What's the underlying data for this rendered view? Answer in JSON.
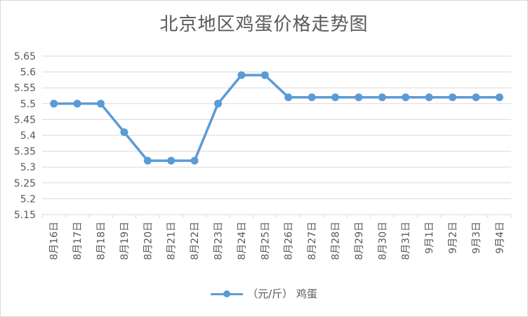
{
  "chart_data": {
    "type": "line",
    "title": "北京地区鸡蛋价格走势图",
    "xlabel": "",
    "ylabel": "",
    "categories": [
      "8月16日",
      "8月17日",
      "8月18日",
      "8月19日",
      "8月20日",
      "8月21日",
      "8月22日",
      "8月23日",
      "8月24日",
      "8月25日",
      "8月26日",
      "8月27日",
      "8月28日",
      "8月29日",
      "8月30日",
      "8月31日",
      "9月1日",
      "9月2日",
      "9月3日",
      "9月4日"
    ],
    "series": [
      {
        "name": "（元/斤）  鸡蛋",
        "values": [
          5.5,
          5.5,
          5.5,
          5.41,
          5.32,
          5.32,
          5.32,
          5.5,
          5.59,
          5.59,
          5.52,
          5.52,
          5.52,
          5.52,
          5.52,
          5.52,
          5.52,
          5.52,
          5.52,
          5.52
        ]
      }
    ],
    "ylim": [
      5.15,
      5.65
    ],
    "yticks": [
      "5.65",
      "5.6",
      "5.55",
      "5.5",
      "5.45",
      "5.4",
      "5.35",
      "5.3",
      "5.25",
      "5.2",
      "5.15"
    ],
    "grid": true,
    "legend": "bottom",
    "colors": {
      "series": "#5b9bd5",
      "grid": "#d9d9d9",
      "text": "#595959"
    }
  }
}
